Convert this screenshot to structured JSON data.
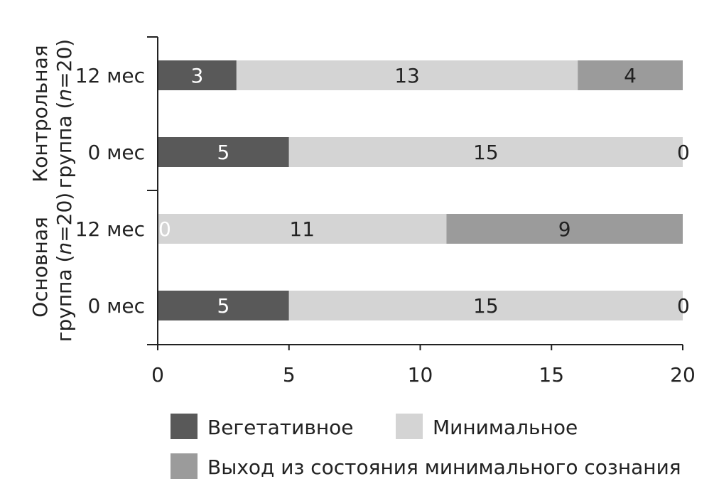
{
  "chart_data": {
    "type": "bar",
    "orientation": "horizontal",
    "stacked": true,
    "xlim": [
      0,
      20
    ],
    "xticks": [
      "0",
      "5",
      "10",
      "15",
      "20"
    ],
    "grid": false,
    "legend_position": "bottom",
    "groups": [
      {
        "label": "Контрольная группа (n=20)",
        "label_parts": [
          "Контрольная",
          "группа (",
          "n",
          "=20)"
        ]
      },
      {
        "label": "Основная группа (n=20)",
        "label_parts": [
          "Основная",
          "группа (",
          "n",
          "=20)"
        ]
      }
    ],
    "categories": [
      "12 мес",
      "0 мес",
      "12 мес",
      "0 мес"
    ],
    "category_groups": [
      0,
      0,
      1,
      1
    ],
    "series": [
      {
        "name": "Вегетативное",
        "color": "#595959",
        "values": [
          3,
          5,
          0,
          5
        ]
      },
      {
        "name": "Минимальное",
        "color": "#d4d4d4",
        "values": [
          13,
          15,
          11,
          15
        ]
      },
      {
        "name": "Выход из состояния минимального сознания",
        "color": "#9b9b9b",
        "values": [
          4,
          0,
          9,
          0
        ]
      }
    ],
    "data_labels": [
      [
        "3",
        "13",
        "4"
      ],
      [
        "5",
        "15",
        "0"
      ],
      [
        "0",
        "11",
        "9"
      ],
      [
        "5",
        "15",
        "0"
      ]
    ]
  }
}
